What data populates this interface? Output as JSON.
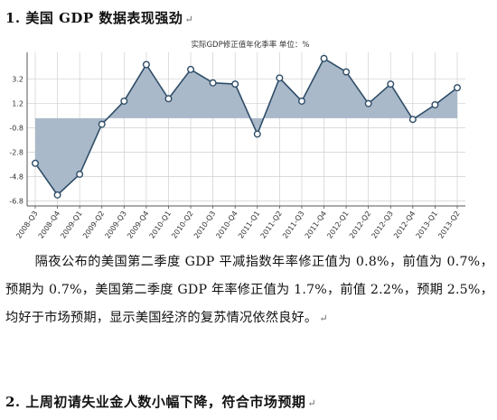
{
  "section1": {
    "heading": "1.  美国 GDP 数据表现强劲",
    "mark": "↵"
  },
  "paragraph": {
    "text": "隔夜公布的美国第二季度 GDP 平减指数年率修正值为 0.8%，前值为 0.7%，预期为 0.7%，美国第二季度 GDP 年率修正值为 1.7%，前值 2.2%，预期 2.5%，均好于市场预期，显示美国经济的复苏情况依然良好。",
    "mark": "↵"
  },
  "section2": {
    "heading": "2.  上周初请失业金人数小幅下降，符合市场预期",
    "mark": "↵"
  },
  "colors": {
    "area": "#a9b9c9",
    "line": "#2f4d68",
    "grid": "#cfcfcf",
    "axis": "#555555"
  },
  "chart_data": {
    "type": "area",
    "title": "实际GDP修正值年化季率 单位：%",
    "categories": [
      "2008-Q3",
      "2008-Q4",
      "2009-Q1",
      "2009-Q2",
      "2009-Q3",
      "2009-Q4",
      "2010-Q1",
      "2010-Q2",
      "2010-Q3",
      "2010-Q4",
      "2011-Q1",
      "2011-Q2",
      "2011-Q3",
      "2011-Q4",
      "2012-Q1",
      "2012-Q2",
      "2012-Q3",
      "2012-Q4",
      "2013-Q1",
      "2013-Q2"
    ],
    "values": [
      -3.7,
      -6.3,
      -4.6,
      -0.5,
      1.4,
      4.4,
      1.6,
      4.0,
      2.9,
      2.8,
      -1.3,
      3.3,
      1.4,
      4.9,
      3.8,
      1.2,
      2.8,
      -0.1,
      1.1,
      2.5
    ],
    "yticks": [
      3.2,
      1.2,
      -0.8,
      -2.8,
      -4.8,
      -6.8
    ],
    "ytick_labels": [
      "3.2",
      "1.2",
      "-0.8",
      "-2.8",
      "-4.8",
      "-6.8"
    ],
    "ylim": [
      -7.2,
      5.4
    ],
    "baseline": 0,
    "grid": true,
    "xlabel": "",
    "ylabel": ""
  }
}
